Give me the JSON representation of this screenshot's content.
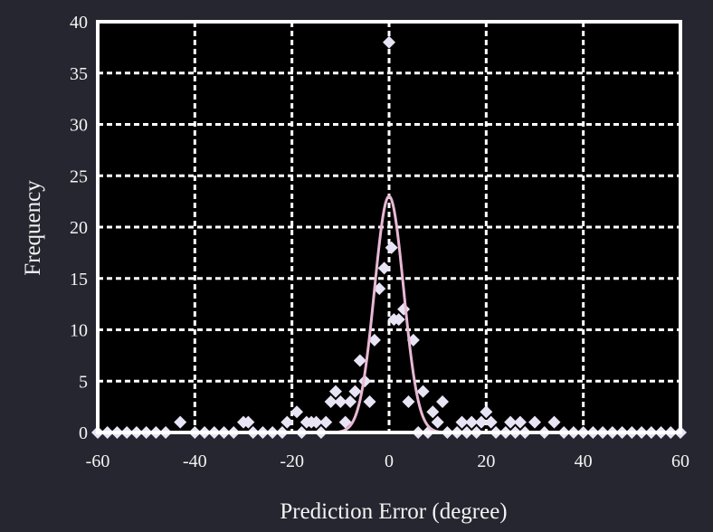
{
  "chart_data": {
    "type": "scatter",
    "title": "",
    "xlabel": "Prediction Error (degree)",
    "ylabel": "Frequency",
    "xlim": [
      -60,
      60
    ],
    "ylim": [
      0,
      40
    ],
    "xticks": [
      -60,
      -40,
      -20,
      0,
      20,
      40,
      60
    ],
    "yticks": [
      0,
      5,
      10,
      15,
      20,
      25,
      30,
      35,
      40
    ],
    "grid": true,
    "legend": "none",
    "colors": {
      "background": "#262630",
      "grid": "#ffffff",
      "axes": "#ffffff",
      "points": "#e8e4f5",
      "curve": "#e8b8d4"
    },
    "series": [
      {
        "type": "scatter",
        "marker": "diamond",
        "points": [
          [
            -60,
            0
          ],
          [
            -58,
            0
          ],
          [
            -56,
            0
          ],
          [
            -54,
            0
          ],
          [
            -52,
            0
          ],
          [
            -50,
            0
          ],
          [
            -48,
            0
          ],
          [
            -46,
            0
          ],
          [
            -43,
            1
          ],
          [
            -40,
            0
          ],
          [
            -38,
            0
          ],
          [
            -36,
            0
          ],
          [
            -34,
            0
          ],
          [
            -32,
            0
          ],
          [
            -30,
            1
          ],
          [
            -29,
            1
          ],
          [
            -28,
            0
          ],
          [
            -26,
            0
          ],
          [
            -24,
            0
          ],
          [
            -22,
            0
          ],
          [
            -21,
            1
          ],
          [
            -19,
            2
          ],
          [
            -18,
            0
          ],
          [
            -17,
            1
          ],
          [
            -16,
            1
          ],
          [
            -15,
            1
          ],
          [
            -14,
            0
          ],
          [
            -13,
            1
          ],
          [
            -12,
            3
          ],
          [
            -11,
            4
          ],
          [
            -10,
            3
          ],
          [
            -9,
            1
          ],
          [
            -8,
            3
          ],
          [
            -7,
            4
          ],
          [
            -6,
            7
          ],
          [
            -5,
            5
          ],
          [
            -4,
            3
          ],
          [
            -3,
            9
          ],
          [
            -2,
            14
          ],
          [
            -1,
            16
          ],
          [
            0,
            38
          ],
          [
            0.5,
            18
          ],
          [
            1,
            11
          ],
          [
            2,
            11
          ],
          [
            3,
            12
          ],
          [
            4,
            3
          ],
          [
            5,
            9
          ],
          [
            6,
            0
          ],
          [
            7,
            4
          ],
          [
            8,
            0
          ],
          [
            9,
            2
          ],
          [
            10,
            1
          ],
          [
            11,
            3
          ],
          [
            12,
            0
          ],
          [
            14,
            0
          ],
          [
            15,
            1
          ],
          [
            16,
            0
          ],
          [
            17,
            1
          ],
          [
            18,
            0
          ],
          [
            19,
            1
          ],
          [
            20,
            2
          ],
          [
            21,
            1
          ],
          [
            22,
            0
          ],
          [
            24,
            0
          ],
          [
            25,
            1
          ],
          [
            26,
            0
          ],
          [
            27,
            1
          ],
          [
            28,
            0
          ],
          [
            30,
            1
          ],
          [
            32,
            0
          ],
          [
            34,
            1
          ],
          [
            36,
            0
          ],
          [
            38,
            0
          ],
          [
            40,
            0
          ],
          [
            42,
            0
          ],
          [
            44,
            0
          ],
          [
            46,
            0
          ],
          [
            48,
            0
          ],
          [
            50,
            0
          ],
          [
            52,
            0
          ],
          [
            54,
            0
          ],
          [
            56,
            0
          ],
          [
            58,
            0
          ],
          [
            60,
            0
          ]
        ]
      },
      {
        "type": "line",
        "fit": "gaussian",
        "amplitude": 23,
        "mean": 0,
        "sigma": 3
      }
    ]
  }
}
